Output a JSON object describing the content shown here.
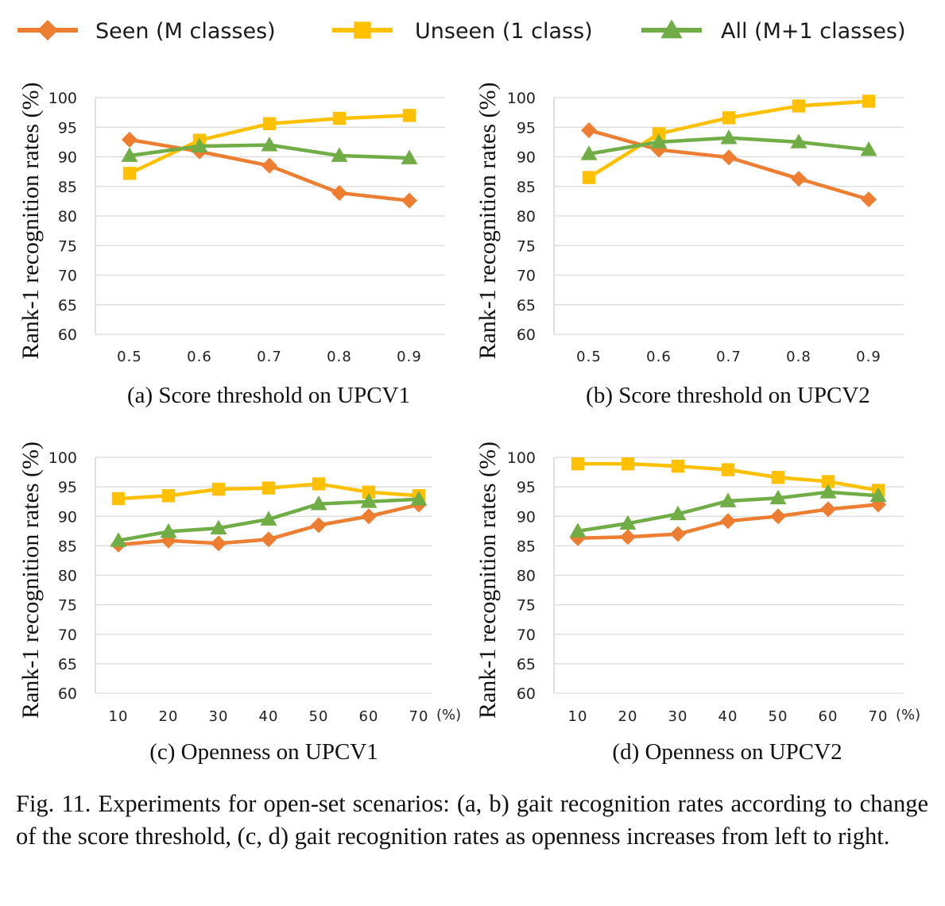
{
  "legend": [
    {
      "label": "Seen (M classes)",
      "color": "#ED7D31",
      "marker": "diamond"
    },
    {
      "label": "Unseen (1 class)",
      "color": "#FFC000",
      "marker": "square"
    },
    {
      "label": "All (M+1 classes)",
      "color": "#70AD47",
      "marker": "triangle"
    }
  ],
  "chart_data": [
    {
      "type": "line",
      "title": "(a) Score threshold on UPCV1",
      "ylabel": "Rank-1 recognition rates (%)",
      "xlabel": "",
      "x_unit": "",
      "categories": [
        "0.5",
        "0.6",
        "0.7",
        "0.8",
        "0.9"
      ],
      "ylim": [
        60,
        100
      ],
      "yticks": [
        60,
        65,
        70,
        75,
        80,
        85,
        90,
        95,
        100
      ],
      "grid": true,
      "series": [
        {
          "name": "Seen (M classes)",
          "values": [
            92.9,
            90.9,
            88.5,
            83.9,
            82.6
          ]
        },
        {
          "name": "Unseen (1 class)",
          "values": [
            87.2,
            92.8,
            95.6,
            96.5,
            97.0
          ]
        },
        {
          "name": "All (M+1 classes)",
          "values": [
            90.2,
            91.8,
            92.0,
            90.2,
            89.8
          ]
        }
      ]
    },
    {
      "type": "line",
      "title": "(b) Score threshold on UPCV2",
      "ylabel": "Rank-1 recognition rates (%)",
      "xlabel": "",
      "x_unit": "",
      "categories": [
        "0.5",
        "0.6",
        "0.7",
        "0.8",
        "0.9"
      ],
      "ylim": [
        60,
        100
      ],
      "yticks": [
        60,
        65,
        70,
        75,
        80,
        85,
        90,
        95,
        100
      ],
      "grid": true,
      "series": [
        {
          "name": "Seen (M classes)",
          "values": [
            94.5,
            91.2,
            89.9,
            86.3,
            82.8
          ]
        },
        {
          "name": "Unseen (1 class)",
          "values": [
            86.5,
            93.9,
            96.6,
            98.6,
            99.4
          ]
        },
        {
          "name": "All (M+1 classes)",
          "values": [
            90.5,
            92.5,
            93.2,
            92.5,
            91.2
          ]
        }
      ]
    },
    {
      "type": "line",
      "title": "(c) Openness on UPCV1",
      "ylabel": "Rank-1 recognition rates (%)",
      "xlabel": "",
      "x_unit": "(%)",
      "categories": [
        "10",
        "20",
        "30",
        "40",
        "50",
        "60",
        "70"
      ],
      "ylim": [
        60,
        100
      ],
      "yticks": [
        60,
        65,
        70,
        75,
        80,
        85,
        90,
        95,
        100
      ],
      "grid": true,
      "series": [
        {
          "name": "Seen (M classes)",
          "values": [
            85.2,
            85.9,
            85.4,
            86.1,
            88.5,
            90.0,
            92.0
          ]
        },
        {
          "name": "Unseen (1 class)",
          "values": [
            93.0,
            93.5,
            94.6,
            94.8,
            95.5,
            94.1,
            93.5
          ]
        },
        {
          "name": "All (M+1 classes)",
          "values": [
            85.9,
            87.4,
            88.0,
            89.5,
            92.1,
            92.5,
            92.9
          ]
        }
      ]
    },
    {
      "type": "line",
      "title": "(d) Openness on UPCV2",
      "ylabel": "Rank-1 recognition rates (%)",
      "xlabel": "",
      "x_unit": "(%)",
      "categories": [
        "10",
        "20",
        "30",
        "40",
        "50",
        "60",
        "70"
      ],
      "ylim": [
        60,
        100
      ],
      "yticks": [
        60,
        65,
        70,
        75,
        80,
        85,
        90,
        95,
        100
      ],
      "grid": true,
      "series": [
        {
          "name": "Seen (M classes)",
          "values": [
            86.3,
            86.5,
            87.0,
            89.2,
            90.0,
            91.2,
            92.0
          ]
        },
        {
          "name": "Unseen (1 class)",
          "values": [
            98.9,
            98.9,
            98.5,
            97.9,
            96.6,
            95.9,
            94.4
          ]
        },
        {
          "name": "All (M+1 classes)",
          "values": [
            87.5,
            88.8,
            90.4,
            92.6,
            93.1,
            94.1,
            93.5
          ]
        }
      ]
    }
  ],
  "caption": "Fig. 11.  Experiments for open-set scenarios: (a, b) gait recognition rates according to change of the score threshold, (c, d) gait recognition rates as openness increases from left to right."
}
